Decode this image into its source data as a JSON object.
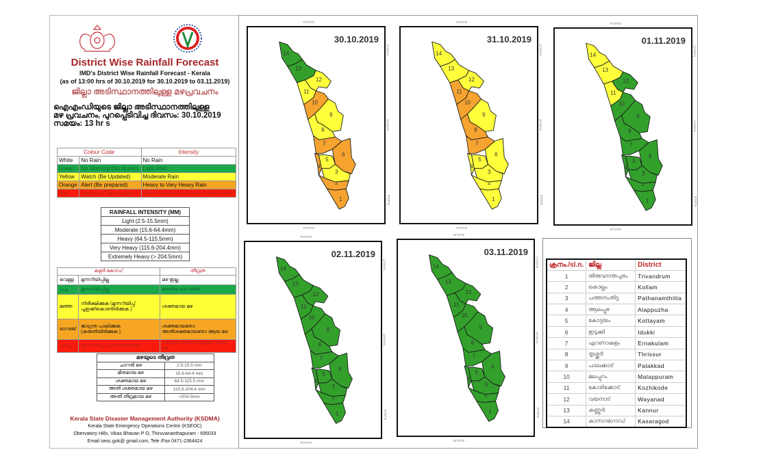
{
  "header": {
    "title": "District Wise Rainfall Forecast",
    "subtitle_1": "IMD's District Wise Rainfall Forecast - Kerala",
    "subtitle_2": "(as of 13:00 hrs of 30.10.2019  for 30.10.2019  to 03.11.2019)",
    "malayalam_title": "ജില്ലാ അടിസ്ഥാനത്തിലുള്ള മഴപ്രവചനം",
    "malayalam_line_1": "ഐഎംഡിയുടെ ജില്ലാ  അടിസ്ഥാനത്തിലുള്ള",
    "malayalam_line_2": "മഴ പ്രവചനം, പുറപ്പെടിവിച്ച  ദിവസം: 30.10.2019",
    "malayalam_line_3": "സമയം: 13 hr s"
  },
  "colour_code_table": {
    "headers": [
      "Colour Code",
      "Intensity"
    ],
    "rows": [
      {
        "colour": "White",
        "code": "No Rain",
        "intensity": "No Rain",
        "class": "w"
      },
      {
        "colour": "Green",
        "code": "No Warning (No Action)",
        "intensity": "Light Rain",
        "class": "g"
      },
      {
        "colour": "Yellow",
        "code": "Watch (Be Updated)",
        "intensity": "Moderate Rain",
        "class": "y"
      },
      {
        "colour": "Orange",
        "code": "Alert (Be prepared)",
        "intensity": "Heavy to Very Heavy Rain",
        "class": "o"
      },
      {
        "colour": "Red",
        "code": "Warning (Take Action)",
        "intensity": "Very Heavy Rain to Extremely Heavy Rain",
        "class": "r"
      }
    ]
  },
  "rainfall_intensity_table": {
    "header": "RAINFALL INTENSITY (MM)",
    "rows": [
      "Light (2.5-15.5mm)",
      "Moderate (15.6-64.4mm)",
      "Heavy (64.5-115.5mm)",
      "Very Heavy (115.6-204.4mm)",
      "Extremely Heavy (> 204.5mm)"
    ]
  },
  "malayalam_colour_code_table": {
    "headers": [
      "കളർ കോഡ്",
      "തീവ്രത"
    ],
    "rows": [
      {
        "colour": "വെള്ള",
        "code": "മുന്നറിയിപ്പില്ല",
        "intensity": "മഴ ഇല്ല",
        "class": "w"
      },
      {
        "colour": "പച്ച",
        "code": "മുന്നറിയിപ്പില്ല",
        "intensity": "നേരിയ തോതിൽ",
        "class": "g"
      },
      {
        "colour": "മഞ്ഞ",
        "code": "നിരീക്ഷിക്കുക (മുന്നറിയിപ്പ് പുതുക്കികൊണ്ടിരിക്കുക )",
        "intensity": "ശക്തമായ മഴ",
        "class": "y"
      },
      {
        "colour": "ഓറഞ്ച്",
        "code": "ജാഗ്രത പാലിക്കുക (കരുതിയിരിക്കുക )",
        "intensity": "ശക്തമായതോ അതിശക്തമായതോ ആയ മഴ",
        "class": "o"
      },
      {
        "colour": "ചുവപ്പ്",
        "code": "മുന്നറിയിപ്പ് (പ്രവർത്തിക്കുക)",
        "intensity": "തീവ്രമോ അതി തീവ്രമോ ആയ മഴ",
        "class": "r"
      }
    ]
  },
  "malayalam_rainfall_intensity_table": {
    "header": "മഴയുടെ തീവ്രത",
    "rows": [
      {
        "label": "ചാറൽ മഴ",
        "range": "2.5-15.5 mm"
      },
      {
        "label": "മിതമായ മഴ",
        "range": "15.6-64.4 mm"
      },
      {
        "label": "ശക്തമായ മഴ",
        "range": "64.5-115.5 mm"
      },
      {
        "label": "അതി ശക്തമായ മഴ",
        "range": "115.6-204.4 mm"
      },
      {
        "label": "അതി തീവ്രമായ മഴ",
        "range": ">204.5mm"
      }
    ]
  },
  "footer": {
    "org": "Kerala State Disaster Management Authority (KSDMA)",
    "centre": "Kerala State Emergency Operations Centre (KSEOC)",
    "address": "Obervatory Hills, Vikas Bhavan P O, Thiruvananthapuram - 695033",
    "contact": "Email seoc.gok@ gmail.com, Tele /Fax 0471-2364424"
  },
  "colors": {
    "green": "#33a02c",
    "yellow": "#ffff36",
    "orange": "#f6a623",
    "red": "#fb1b0c",
    "title_red": "#a5262a"
  },
  "map_ticks": {
    "lon": "76°0'0\"E",
    "lat_top": "12°0'0\"N",
    "lat_mid": "10°0'0\"N",
    "lat_bottom": "8°0'0\"N"
  },
  "maps": [
    {
      "date": "30.10.2019",
      "districts": {
        "1": "orange",
        "2": "orange",
        "3": "yellow",
        "4": "orange",
        "5": "yellow",
        "6": "orange",
        "7": "orange",
        "8": "yellow",
        "9": "yellow",
        "10": "orange",
        "11": "yellow",
        "12": "yellow",
        "13": "green",
        "14": "green"
      }
    },
    {
      "date": "31.10.2019",
      "districts": {
        "1": "yellow",
        "2": "yellow",
        "3": "yellow",
        "4": "yellow",
        "5": "yellow",
        "6": "yellow",
        "7": "orange",
        "8": "orange",
        "9": "yellow",
        "10": "orange",
        "11": "orange",
        "12": "yellow",
        "13": "yellow",
        "14": "yellow"
      }
    },
    {
      "date": "01.11.2019",
      "districts": {
        "1": "green",
        "2": "green",
        "3": "green",
        "4": "green",
        "5": "green",
        "6": "green",
        "7": "green",
        "8": "green",
        "9": "green",
        "10": "green",
        "11": "yellow",
        "12": "green",
        "13": "yellow",
        "14": "yellow"
      }
    },
    {
      "date": "02.11.2019",
      "districts": {
        "1": "green",
        "2": "green",
        "3": "green",
        "4": "green",
        "5": "green",
        "6": "green",
        "7": "green",
        "8": "green",
        "9": "green",
        "10": "green",
        "11": "green",
        "12": "green",
        "13": "green",
        "14": "green"
      }
    },
    {
      "date": "03.11.2019",
      "districts": {
        "1": "green",
        "2": "green",
        "3": "green",
        "4": "green",
        "5": "green",
        "6": "green",
        "7": "green",
        "8": "green",
        "9": "green",
        "10": "green",
        "11": "green",
        "12": "green",
        "13": "green",
        "14": "green"
      }
    }
  ],
  "district_table": {
    "headers": [
      "ക്രനം./sl.n.",
      "ജില്ല",
      "District"
    ],
    "rows": [
      {
        "no": "1",
        "mal": "തിരുവനന്തപുരം",
        "en": "Trivandrum"
      },
      {
        "no": "2",
        "mal": "കൊല്ലം",
        "en": "Kollam"
      },
      {
        "no": "3",
        "mal": "പത്തനംതിട്ട",
        "en": "Pathanamthitta"
      },
      {
        "no": "4",
        "mal": "ആലപ്പുഴ",
        "en": "Alappuzha"
      },
      {
        "no": "5",
        "mal": "കോട്ടയം",
        "en": "Kottayam"
      },
      {
        "no": "6",
        "mal": "ഇടുക്കി",
        "en": "Idukki"
      },
      {
        "no": "7",
        "mal": "എറണാകുളം",
        "en": "Ernakulam"
      },
      {
        "no": "8",
        "mal": "തൃശ്ശൂർ",
        "en": "Thrissur"
      },
      {
        "no": "9",
        "mal": "പാലക്കാട്",
        "en": "Palakkad"
      },
      {
        "no": "10",
        "mal": "മലപ്പുറം",
        "en": "Malappuram"
      },
      {
        "no": "11",
        "mal": "കോഴിക്കോട്",
        "en": "Kozhikode"
      },
      {
        "no": "12",
        "mal": "വയനാട്",
        "en": "Wayanad"
      },
      {
        "no": "13",
        "mal": "കണ്ണൂർ",
        "en": "Kannur"
      },
      {
        "no": "14",
        "mal": "കാസറഗോഡ്",
        "en": "Kasaragod"
      }
    ]
  }
}
